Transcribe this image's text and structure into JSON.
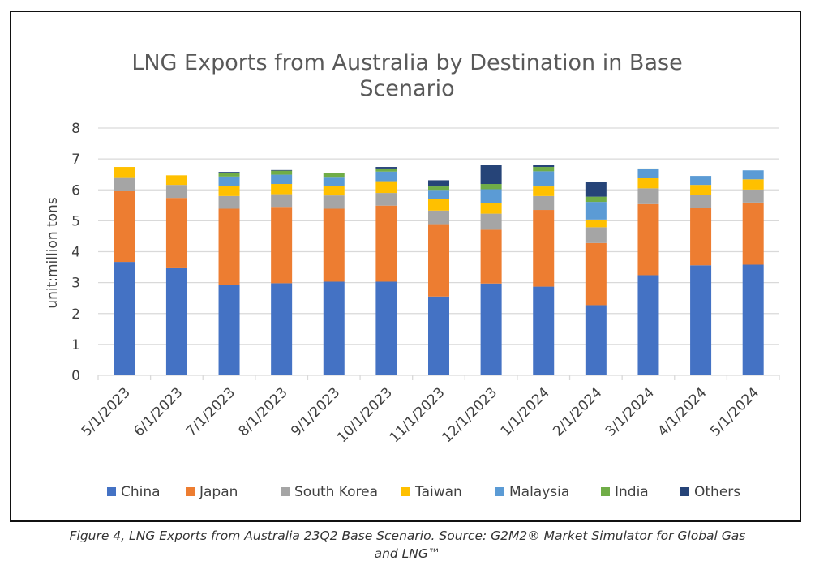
{
  "chart_data": {
    "type": "bar",
    "stacked": true,
    "title": "LNG Exports from Australia by Destination in Base Scenario",
    "title_lines": [
      "LNG Exports from Australia by Destination in Base",
      "Scenario"
    ],
    "xlabel": "",
    "ylabel": "unit:million tons",
    "ylim": [
      0,
      8
    ],
    "yticks": [
      "0",
      "1",
      "2",
      "3",
      "4",
      "5",
      "6",
      "7",
      "8"
    ],
    "grid": true,
    "legend_position": "bottom",
    "categories": [
      "5/1/2023",
      "6/1/2023",
      "7/1/2023",
      "8/1/2023",
      "9/1/2023",
      "10/1/2023",
      "11/1/2023",
      "12/1/2023",
      "1/1/2024",
      "2/1/2024",
      "3/1/2024",
      "4/1/2024",
      "5/1/2024"
    ],
    "series": [
      {
        "name": "China",
        "color": "#4472C4",
        "values": [
          3.67,
          3.49,
          2.92,
          2.98,
          3.03,
          3.03,
          2.55,
          2.97,
          2.87,
          2.27,
          3.24,
          3.56,
          3.58
        ]
      },
      {
        "name": "Japan",
        "color": "#ED7D31",
        "values": [
          2.29,
          2.25,
          2.47,
          2.47,
          2.36,
          2.46,
          2.34,
          1.74,
          2.48,
          2.01,
          2.3,
          1.85,
          2.01
        ]
      },
      {
        "name": "South Korea",
        "color": "#A5A5A5",
        "values": [
          0.45,
          0.42,
          0.41,
          0.41,
          0.43,
          0.41,
          0.44,
          0.52,
          0.45,
          0.51,
          0.51,
          0.43,
          0.42
        ]
      },
      {
        "name": "Taiwan",
        "color": "#FFC000",
        "values": [
          0.33,
          0.31,
          0.33,
          0.33,
          0.3,
          0.38,
          0.37,
          0.34,
          0.31,
          0.25,
          0.33,
          0.32,
          0.33
        ]
      },
      {
        "name": "Malaysia",
        "color": "#5B9BD5",
        "values": [
          0,
          0,
          0.3,
          0.3,
          0.3,
          0.31,
          0.3,
          0.45,
          0.49,
          0.57,
          0.29,
          0.29,
          0.29
        ]
      },
      {
        "name": "India",
        "color": "#70AD47",
        "values": [
          0,
          0,
          0.12,
          0.13,
          0.12,
          0.1,
          0.11,
          0.17,
          0.14,
          0.17,
          0.02,
          0,
          0
        ]
      },
      {
        "name": "Others",
        "color": "#264478",
        "values": [
          0,
          0,
          0.03,
          0.02,
          0,
          0.05,
          0.2,
          0.62,
          0.07,
          0.48,
          0,
          0,
          0
        ]
      }
    ]
  },
  "caption": {
    "line1": "Figure 4, LNG Exports from Australia 23Q2 Base Scenario. Source: G2M2® Market Simulator for Global Gas",
    "line2": "and LNG™"
  }
}
